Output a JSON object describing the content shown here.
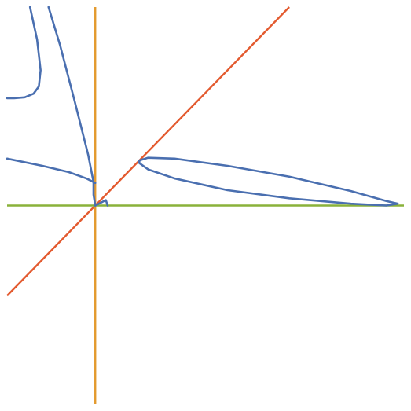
{
  "chart_data": {
    "type": "line",
    "title": "",
    "xlabel": "",
    "ylabel": "",
    "xlim": [
      -1,
      3.5
    ],
    "ylim": [
      -2.2,
      2.2
    ],
    "grid": false,
    "legend": "none",
    "series": [
      {
        "color": "#4a6fb0",
        "segments": [
          [
            [
              -0.74,
              2.2
            ],
            [
              -0.66,
              1.84
            ],
            [
              -0.62,
              1.5
            ],
            [
              -0.64,
              1.32
            ],
            [
              -0.7,
              1.24
            ],
            [
              -0.8,
              1.2
            ],
            [
              -0.92,
              1.19
            ],
            [
              -1.0,
              1.19
            ]
          ]
        ]
      },
      {
        "color": "#4a6fb0",
        "segments": [
          [
            [
              -0.53,
              2.2
            ],
            [
              -0.4,
              1.78
            ],
            [
              -0.24,
              1.18
            ],
            [
              -0.08,
              0.56
            ],
            [
              -0.02,
              0.26
            ],
            [
              -0.02,
              0.12
            ],
            [
              0.0,
              0.0
            ]
          ]
        ]
      },
      {
        "color": "#4a6fb0",
        "segments": [
          [
            [
              -1.0,
              0.52
            ],
            [
              -0.6,
              0.44
            ],
            [
              -0.3,
              0.37
            ],
            [
              -0.1,
              0.3
            ],
            [
              0.0,
              0.25
            ]
          ]
        ]
      },
      {
        "color": "#4a6fb0",
        "segments": [
          [
            [
              0.0,
              0.0
            ],
            [
              0.12,
              0.06
            ],
            [
              0.14,
              0.0
            ]
          ]
        ]
      },
      {
        "color": "#4a6fb0",
        "closed": true,
        "segments": [
          [
            [
              0.5,
              0.5
            ],
            [
              0.6,
              0.53
            ],
            [
              0.9,
              0.52
            ],
            [
              1.5,
              0.44
            ],
            [
              2.2,
              0.32
            ],
            [
              2.9,
              0.16
            ],
            [
              3.3,
              0.05
            ],
            [
              3.43,
              0.02
            ],
            [
              3.3,
              0.0
            ],
            [
              2.9,
              0.02
            ],
            [
              2.2,
              0.08
            ],
            [
              1.5,
              0.17
            ],
            [
              0.9,
              0.3
            ],
            [
              0.6,
              0.4
            ],
            [
              0.5,
              0.47
            ],
            [
              0.5,
              0.5
            ]
          ]
        ]
      },
      {
        "color": "#e35a2f",
        "segments": [
          [
            [
              -1.0,
              -1.0
            ],
            [
              2.2,
              2.2
            ]
          ]
        ]
      },
      {
        "color": "#e39a2e",
        "segments": [
          [
            [
              0.0,
              -2.2
            ],
            [
              0.0,
              2.2
            ]
          ]
        ]
      },
      {
        "color": "#8ab23a",
        "segments": [
          [
            [
              -1.0,
              0.0
            ],
            [
              3.5,
              0.0
            ]
          ]
        ]
      }
    ]
  }
}
